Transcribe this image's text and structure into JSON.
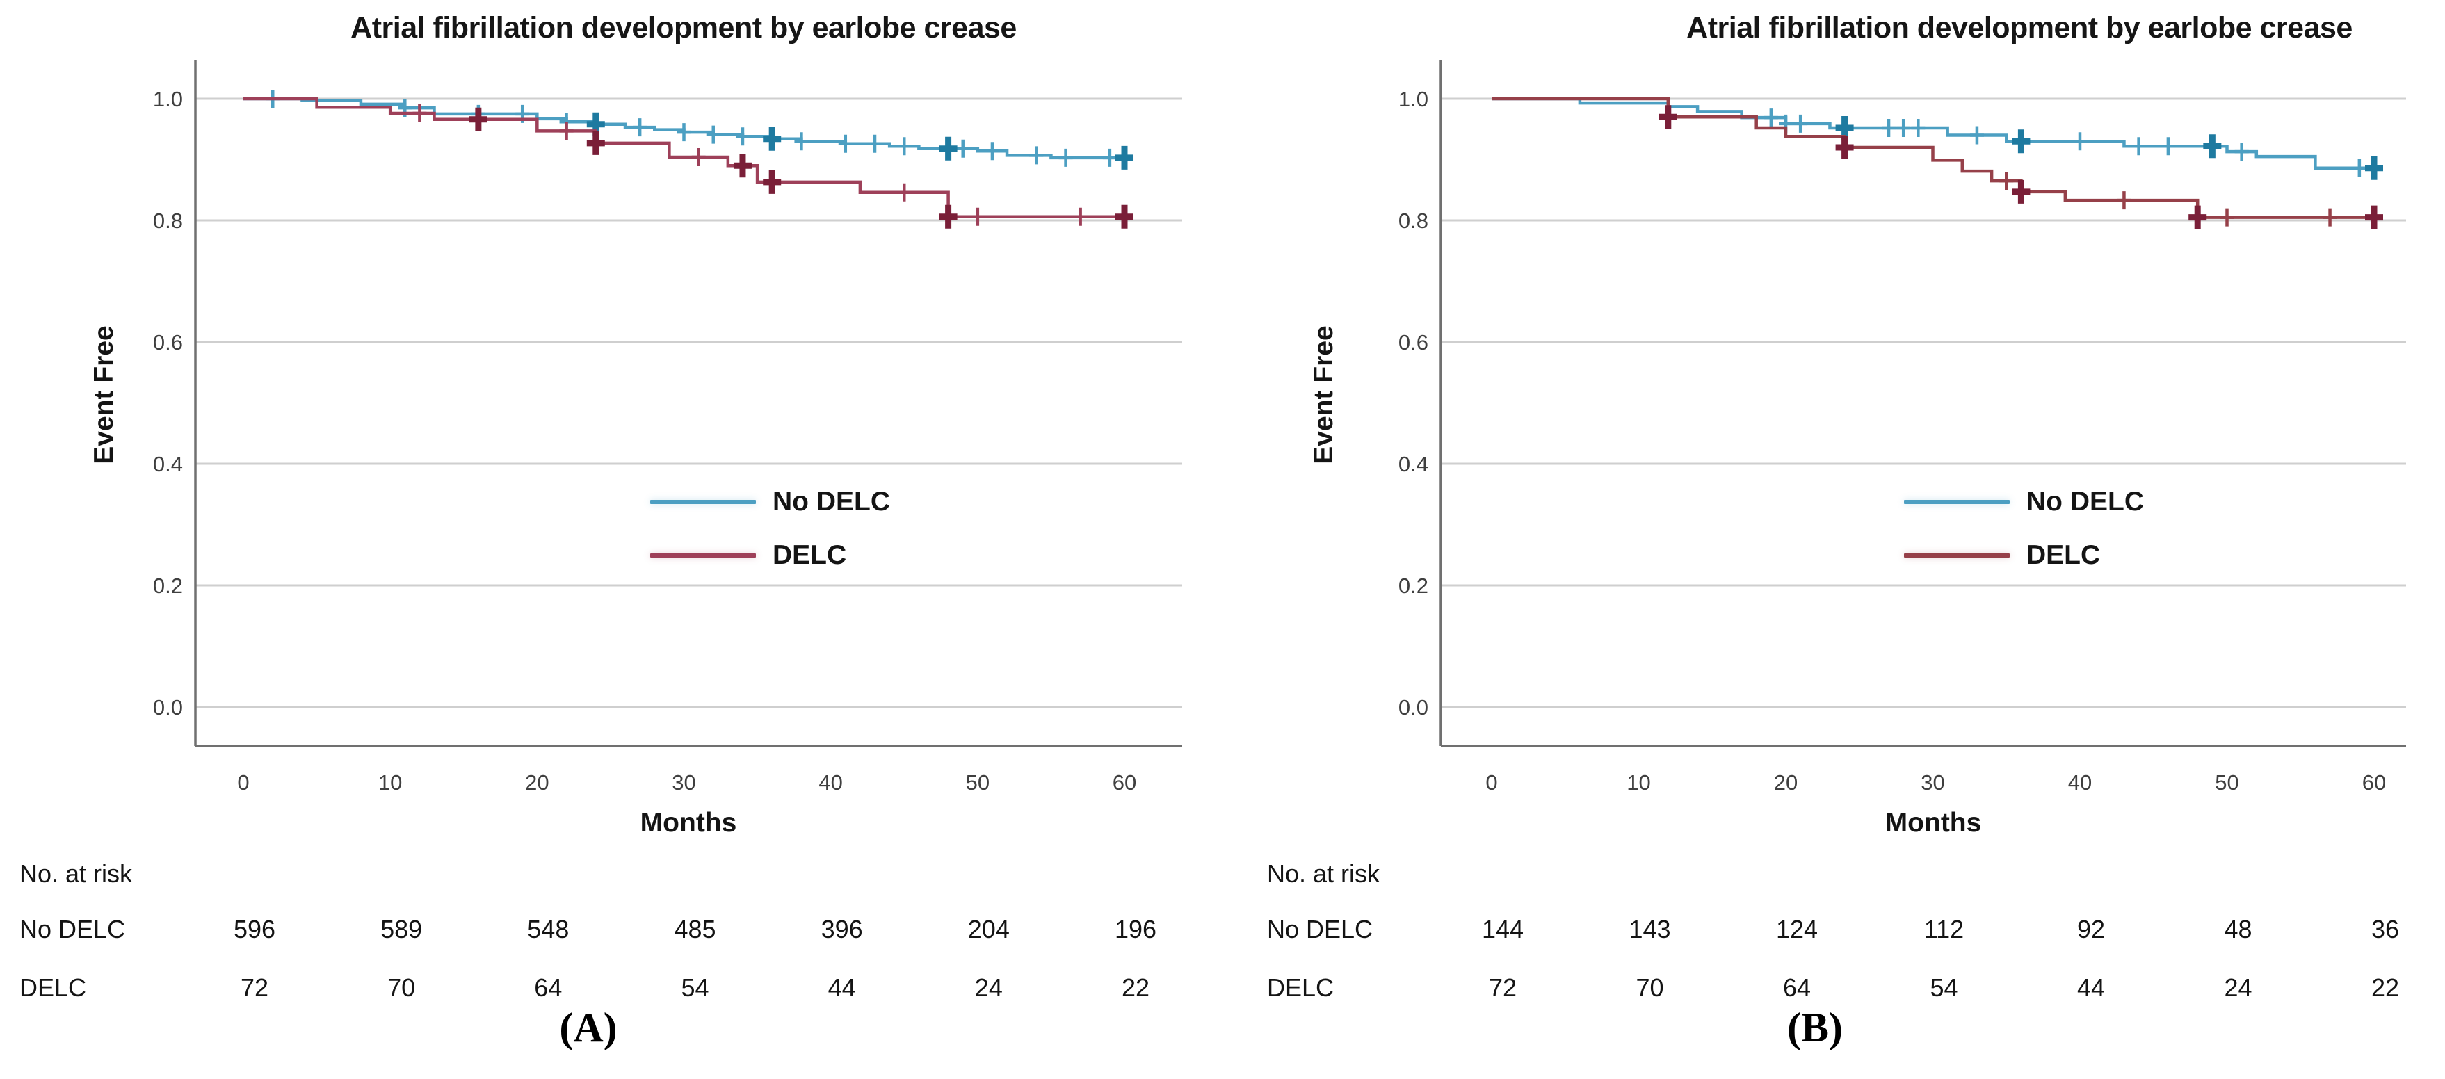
{
  "chart_data": [
    {
      "id": "A",
      "type": "line",
      "subtype": "kaplan-meier-step",
      "title": "Atrial fibrillation development by earlobe crease",
      "xlabel": "Months",
      "ylabel": "Event Free",
      "caption": "(A)",
      "xlim": [
        0,
        60
      ],
      "ylim": [
        0.0,
        1.05
      ],
      "xticks": [
        0,
        10,
        20,
        30,
        40,
        50,
        60
      ],
      "ytick_labels": [
        "1.0",
        "0.8",
        "0.6",
        "0.4",
        "0.2",
        "0.0"
      ],
      "grid": "horizontal",
      "legend_position": "inside-center-right",
      "grid_color": "#CFCFCF",
      "axis_color": "#707070",
      "tick_text_color": "#3F3F3F",
      "series": [
        {
          "name": "No DELC",
          "color": "#4C9FC2",
          "censor_bold_color": "#1E7AA0",
          "steps": [
            [
              0,
              1.0
            ],
            [
              4,
              0.997
            ],
            [
              8,
              0.991
            ],
            [
              11,
              0.985
            ],
            [
              13,
              0.975
            ],
            [
              20,
              0.967
            ],
            [
              22,
              0.962
            ],
            [
              24,
              0.958
            ],
            [
              26,
              0.953
            ],
            [
              28,
              0.949
            ],
            [
              30,
              0.945
            ],
            [
              32,
              0.941
            ],
            [
              34,
              0.938
            ],
            [
              36,
              0.934
            ],
            [
              38,
              0.93
            ],
            [
              41,
              0.926
            ],
            [
              44,
              0.922
            ],
            [
              46,
              0.918
            ],
            [
              50,
              0.914
            ],
            [
              52,
              0.907
            ],
            [
              55,
              0.903
            ]
          ],
          "censors": [
            2,
            11,
            16,
            19,
            22,
            27,
            30,
            32,
            34,
            38,
            41,
            43,
            45,
            49,
            51,
            54,
            56,
            59
          ],
          "censors_bold": [
            24,
            36,
            48,
            60
          ]
        },
        {
          "name": "DELC",
          "color": "#9E4059",
          "censor_bold_color": "#7A1F38",
          "steps": [
            [
              0,
              1.0
            ],
            [
              5,
              0.986
            ],
            [
              10,
              0.976
            ],
            [
              13,
              0.966
            ],
            [
              20,
              0.947
            ],
            [
              24,
              0.927
            ],
            [
              29,
              0.904
            ],
            [
              33,
              0.89
            ],
            [
              35,
              0.863
            ],
            [
              42,
              0.846
            ],
            [
              48,
              0.806
            ]
          ],
          "censors": [
            12,
            22,
            31,
            45,
            50,
            57
          ],
          "censors_bold": [
            16,
            24,
            34,
            36,
            48,
            60
          ]
        }
      ],
      "risk_table": {
        "header": "No. at risk",
        "months": [
          0,
          10,
          20,
          30,
          40,
          50,
          60
        ],
        "rows": [
          {
            "label": "No DELC",
            "values": [
              596,
              589,
              548,
              485,
              396,
              204,
              196
            ]
          },
          {
            "label": "DELC",
            "values": [
              72,
              70,
              64,
              54,
              44,
              24,
              22
            ]
          }
        ]
      }
    },
    {
      "id": "B",
      "type": "line",
      "subtype": "kaplan-meier-step",
      "title": "Atrial fibrillation development by earlobe crease",
      "xlabel": "Months",
      "ylabel": "Event Free",
      "caption": "(B)",
      "xlim": [
        0,
        60
      ],
      "ylim": [
        0.0,
        1.05
      ],
      "xticks": [
        0,
        10,
        20,
        30,
        40,
        50,
        60
      ],
      "ytick_labels": [
        "1.0",
        "0.8",
        "0.6",
        "0.4",
        "0.2",
        "0.0"
      ],
      "grid": "horizontal",
      "legend_position": "inside-center-right",
      "grid_color": "#CFCFCF",
      "axis_color": "#707070",
      "tick_text_color": "#3F3F3F",
      "series": [
        {
          "name": "No DELC",
          "color": "#4C9FC2",
          "censor_bold_color": "#1E7AA0",
          "steps": [
            [
              0,
              1.0
            ],
            [
              6,
              0.993
            ],
            [
              12,
              0.987
            ],
            [
              14,
              0.979
            ],
            [
              17,
              0.969
            ],
            [
              20,
              0.959
            ],
            [
              23,
              0.952
            ],
            [
              31,
              0.94
            ],
            [
              35,
              0.93
            ],
            [
              43,
              0.922
            ],
            [
              50,
              0.913
            ],
            [
              52,
              0.905
            ],
            [
              56,
              0.886
            ]
          ],
          "censors": [
            19,
            20,
            21,
            27,
            28,
            29,
            33,
            40,
            44,
            46,
            51,
            59
          ],
          "censors_bold": [
            24,
            36,
            49,
            60
          ]
        },
        {
          "name": "DELC",
          "color": "#964049",
          "censor_bold_color": "#7A1F38",
          "steps": [
            [
              0,
              1.0
            ],
            [
              12,
              0.97
            ],
            [
              18,
              0.952
            ],
            [
              20,
              0.938
            ],
            [
              24,
              0.92
            ],
            [
              30,
              0.899
            ],
            [
              32,
              0.881
            ],
            [
              34,
              0.865
            ],
            [
              36,
              0.847
            ],
            [
              39,
              0.833
            ],
            [
              48,
              0.805
            ]
          ],
          "censors": [
            35,
            43,
            50,
            57
          ],
          "censors_bold": [
            12,
            24,
            36,
            48,
            60
          ]
        }
      ],
      "risk_table": {
        "header": "No. at risk",
        "months": [
          0,
          10,
          20,
          30,
          40,
          50,
          60
        ],
        "rows": [
          {
            "label": "No DELC",
            "values": [
              144,
              143,
              124,
              112,
              92,
              48,
              36
            ]
          },
          {
            "label": "DELC",
            "values": [
              72,
              70,
              64,
              54,
              44,
              24,
              22
            ]
          }
        ]
      }
    }
  ]
}
